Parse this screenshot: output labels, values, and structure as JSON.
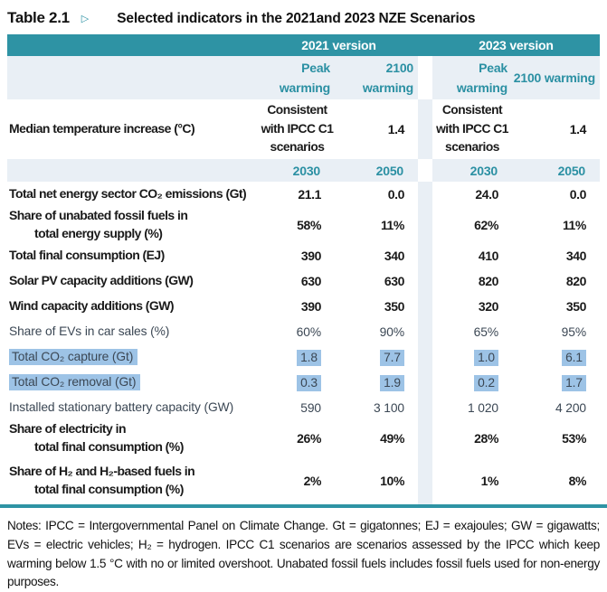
{
  "title": {
    "label": "Table 2.1",
    "marker": "▷",
    "subtitle": "Selected indicators in the 2021and 2023 NZE Scenarios"
  },
  "header": {
    "version_2021": "2021 version",
    "version_2023": "2023 version",
    "peak": "Peak warming",
    "warm2100": "2100 warming",
    "y2030": "2030",
    "y2050": "2050"
  },
  "median": {
    "label": "Median temperature increase (°C)",
    "consistent": "Consistent with IPCC C1 scenarios",
    "value": "1.4"
  },
  "table": {
    "rows": [
      {
        "label": "Total net energy sector CO₂ emissions (Gt)",
        "values": [
          "21.1",
          "0.0",
          "24.0",
          "0.0"
        ],
        "font": "narrow",
        "highlight": false
      },
      {
        "label": "Share of unabated fossil fuels in",
        "label2": "total energy supply (%)",
        "values": [
          "58%",
          "11%",
          "62%",
          "11%"
        ],
        "font": "narrow",
        "highlight": false
      },
      {
        "label": "Total final consumption (EJ)",
        "values": [
          "390",
          "340",
          "410",
          "340"
        ],
        "font": "narrow",
        "highlight": false
      },
      {
        "label": "Solar PV capacity additions (GW)",
        "values": [
          "630",
          "630",
          "820",
          "820"
        ],
        "font": "narrow",
        "highlight": false
      },
      {
        "label": "Wind capacity additions (GW)",
        "values": [
          "390",
          "350",
          "320",
          "350"
        ],
        "font": "narrow",
        "highlight": false
      },
      {
        "label": "Share of EVs in car sales (%)",
        "values": [
          "60%",
          "90%",
          "65%",
          "95%"
        ],
        "font": "alt",
        "highlight": false
      },
      {
        "label": "Total CO₂ capture (Gt)",
        "values": [
          "1.8",
          "7.7",
          "1.0",
          "6.1"
        ],
        "font": "alt",
        "highlight": true
      },
      {
        "label": "Total CO₂ removal (Gt)",
        "values": [
          "0.3",
          "1.9",
          "0.2",
          "1.7"
        ],
        "font": "alt",
        "highlight": true
      },
      {
        "label": "Installed stationary battery capacity (GW)",
        "values": [
          "590",
          "3 100",
          "1 020",
          "4 200"
        ],
        "font": "alt",
        "highlight": false
      },
      {
        "label": "Share of electricity in",
        "label2": "total final consumption (%)",
        "values": [
          "26%",
          "49%",
          "28%",
          "53%"
        ],
        "font": "narrow",
        "highlight": false
      },
      {
        "label": "Share of H₂ and H₂-based fuels in",
        "label2": "total final consumption (%)",
        "values": [
          "2%",
          "10%",
          "1%",
          "8%"
        ],
        "font": "narrow",
        "highlight": false
      }
    ]
  },
  "notes": "Notes: IPCC = Intergovernmental Panel on Climate Change. Gt = gigatonnes; EJ = exajoules; GW = gigawatts; EVs = electric vehicles; H₂ = hydrogen. IPCC C1 scenarios are scenarios assessed by the IPCC which keep warming below 1.5 °C with no or limited overshoot. Unabated fossil fuels includes fossil fuels used for non-energy purposes.",
  "colors": {
    "teal_band": "#2e93a4",
    "teal_text": "#2b90a3",
    "light_blue": "#e9eff5",
    "highlight_blue": "#9dc3e6",
    "text": "#1a1a1a",
    "alt_text": "#3b4754"
  }
}
